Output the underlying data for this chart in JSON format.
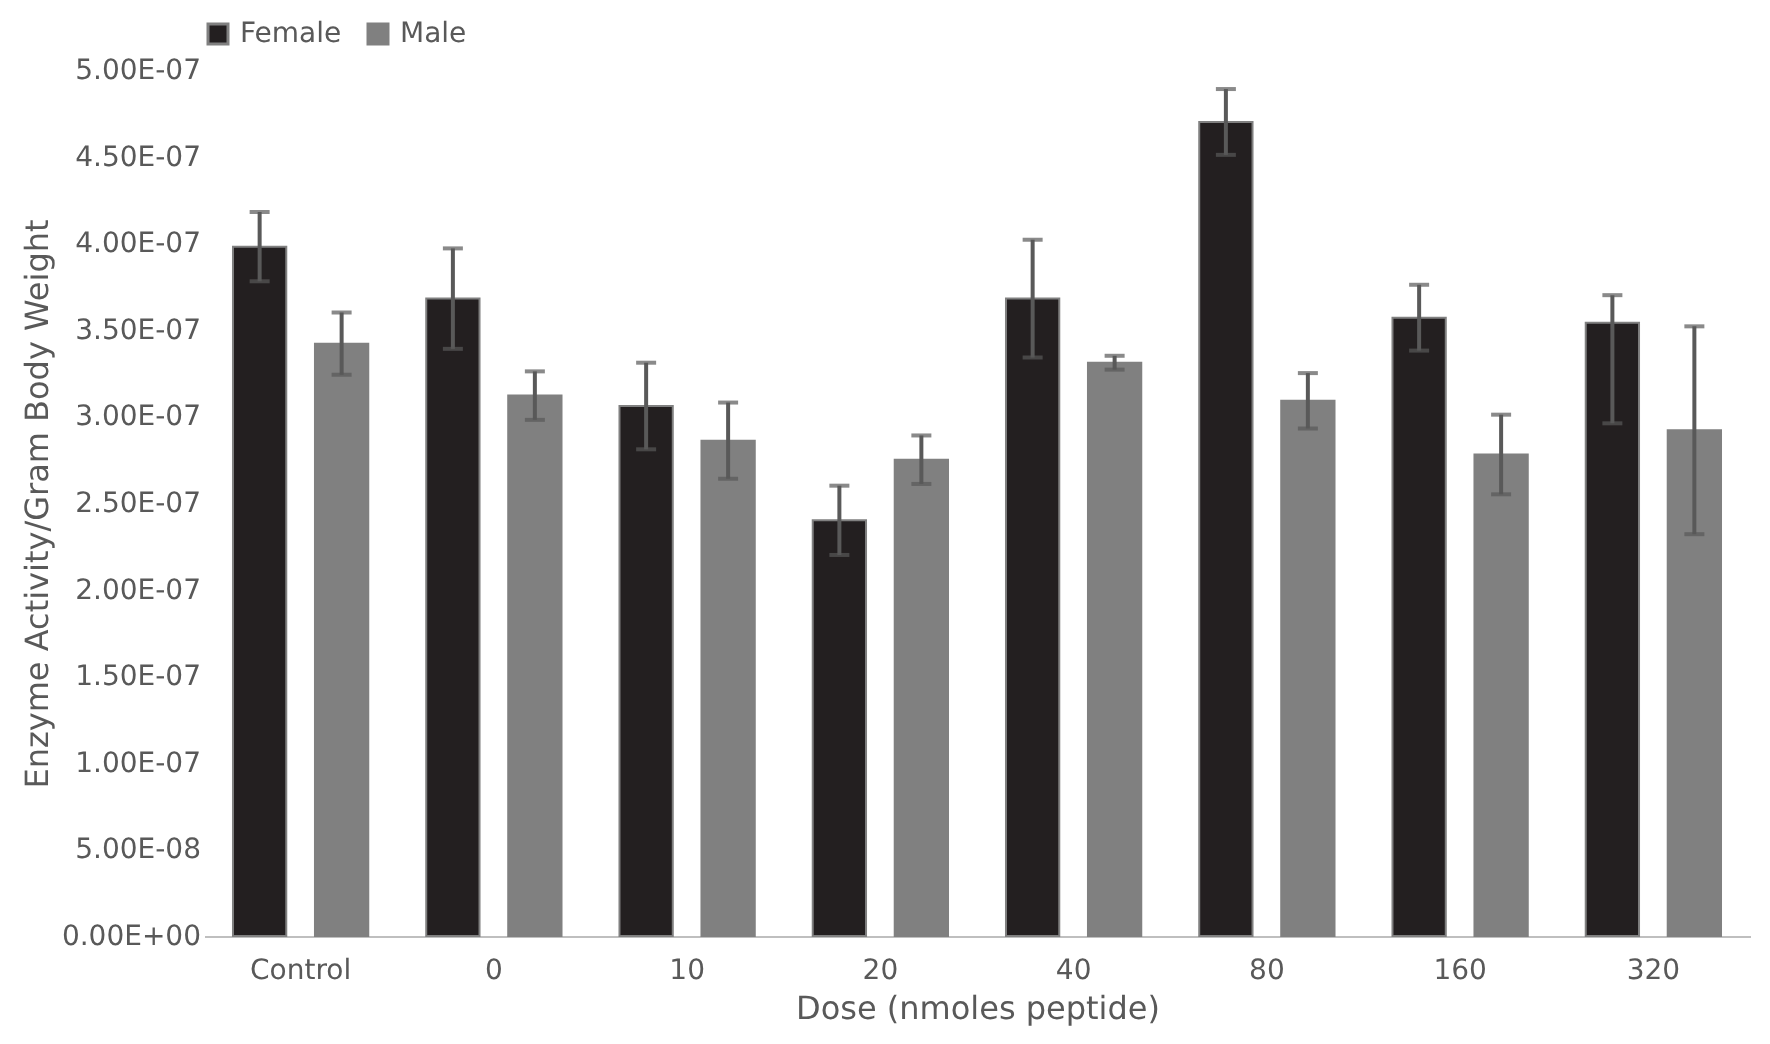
{
  "chart_data": {
    "type": "bar",
    "xlabel": "Dose (nmoles peptide)",
    "ylabel": "Enzyme Activity/Gram Body Weight",
    "categories": [
      "Control",
      "0",
      "10",
      "20",
      "40",
      "80",
      "160",
      "320"
    ],
    "series": [
      {
        "name": "Female",
        "color": "#231f20",
        "values": [
          3.98e-07,
          3.68e-07,
          3.06e-07,
          2.4e-07,
          3.68e-07,
          4.7e-07,
          3.57e-07,
          3.54e-07
        ],
        "errors": [
          2e-08,
          2.9e-08,
          2.5e-08,
          2e-08,
          3.4e-08,
          1.9e-08,
          1.9e-08,
          [
            2.96e-07,
            3.7e-07
          ]
        ]
      },
      {
        "name": "Male",
        "color": "#808080",
        "values": [
          3.42e-07,
          3.12e-07,
          2.86e-07,
          2.75e-07,
          3.31e-07,
          3.09e-07,
          2.78e-07,
          2.92e-07
        ],
        "errors": [
          1.8e-08,
          1.4e-08,
          2.2e-08,
          1.4e-08,
          4e-09,
          1.6e-08,
          2.3e-08,
          6e-08
        ]
      }
    ],
    "ylim": [
      0,
      5e-07
    ],
    "yticks": [
      {
        "value": 0,
        "label": "0.00E+00"
      },
      {
        "value": 5e-08,
        "label": "5.00E-08"
      },
      {
        "value": 1e-07,
        "label": "1.00E-07"
      },
      {
        "value": 1.5e-07,
        "label": "1.50E-07"
      },
      {
        "value": 2e-07,
        "label": "2.00E-07"
      },
      {
        "value": 2.5e-07,
        "label": "2.50E-07"
      },
      {
        "value": 3e-07,
        "label": "3.00E-07"
      },
      {
        "value": 3.5e-07,
        "label": "3.50E-07"
      },
      {
        "value": 4e-07,
        "label": "4.00E-07"
      },
      {
        "value": 4.5e-07,
        "label": "4.50E-07"
      },
      {
        "value": 5e-07,
        "label": "5.00E-07"
      }
    ],
    "grid": false,
    "legend": "top"
  }
}
